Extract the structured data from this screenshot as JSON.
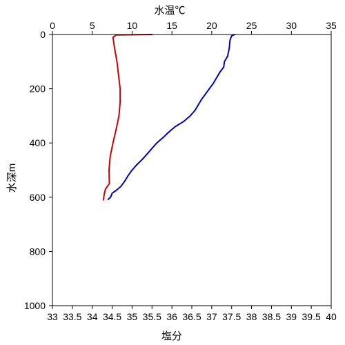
{
  "chart_data": {
    "type": "line",
    "top_axis": {
      "label": "水温℃",
      "label_color": "#1a1aa0",
      "range": [
        0,
        35
      ],
      "ticks": [
        "0",
        "5",
        "10",
        "15",
        "20",
        "25",
        "30",
        "35"
      ]
    },
    "bottom_axis": {
      "label": "塩分",
      "label_color": "#cc0000",
      "range": [
        33,
        40
      ],
      "ticks": [
        "33",
        "33.5",
        "34",
        "34.5",
        "35",
        "35.5",
        "36",
        "36.5",
        "37",
        "37.5",
        "38",
        "38.5",
        "39",
        "39.5",
        "40"
      ]
    },
    "y_axis": {
      "label": "水深m",
      "range": [
        0,
        1000
      ],
      "reversed": true,
      "ticks": [
        "0",
        "200",
        "400",
        "600",
        "800",
        "1000"
      ]
    },
    "grid": false,
    "series": [
      {
        "axis": "top",
        "color": "#0000bb",
        "points": [
          [
            22.9,
            0
          ],
          [
            22.5,
            5
          ],
          [
            22.3,
            20
          ],
          [
            22.2,
            50
          ],
          [
            22.0,
            80
          ],
          [
            21.6,
            100
          ],
          [
            21.5,
            120
          ],
          [
            21.0,
            140
          ],
          [
            20.6,
            160
          ],
          [
            20.2,
            180
          ],
          [
            19.7,
            200
          ],
          [
            19.2,
            220
          ],
          [
            18.7,
            240
          ],
          [
            18.3,
            260
          ],
          [
            17.9,
            280
          ],
          [
            17.3,
            300
          ],
          [
            16.5,
            320
          ],
          [
            15.4,
            340
          ],
          [
            14.6,
            360
          ],
          [
            13.9,
            380
          ],
          [
            13.1,
            400
          ],
          [
            12.5,
            420
          ],
          [
            11.9,
            440
          ],
          [
            11.3,
            460
          ],
          [
            10.6,
            480
          ],
          [
            10.0,
            500
          ],
          [
            9.5,
            520
          ],
          [
            9.1,
            540
          ],
          [
            8.6,
            560
          ],
          [
            8.0,
            575
          ],
          [
            7.5,
            585
          ],
          [
            7.3,
            600
          ],
          [
            7.0,
            608
          ]
        ]
      },
      {
        "axis": "bottom",
        "color": "#cc0000",
        "points": [
          [
            35.5,
            0
          ],
          [
            34.6,
            2
          ],
          [
            34.52,
            10
          ],
          [
            34.56,
            50
          ],
          [
            34.62,
            100
          ],
          [
            34.66,
            150
          ],
          [
            34.7,
            200
          ],
          [
            34.7,
            250
          ],
          [
            34.67,
            300
          ],
          [
            34.6,
            350
          ],
          [
            34.52,
            400
          ],
          [
            34.45,
            450
          ],
          [
            34.42,
            500
          ],
          [
            34.43,
            550
          ],
          [
            34.33,
            570
          ],
          [
            34.3,
            590
          ],
          [
            34.28,
            610
          ]
        ]
      }
    ]
  }
}
